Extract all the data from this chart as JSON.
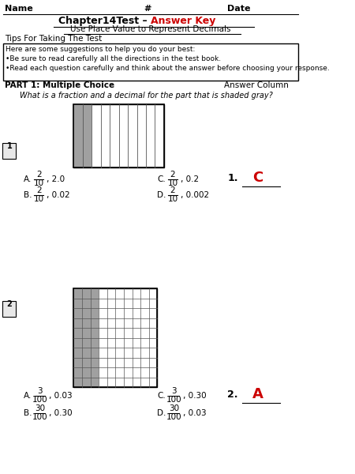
{
  "title_black": "Chapter14Test – ",
  "title_red": "Answer Key",
  "subtitle": "Use Place Value to Represent Decimals",
  "name_label": "Name",
  "hash_label": "#",
  "date_label": "Date",
  "tips_header": "Tips For Taking The Test",
  "tips_lines": [
    "Here are some suggestions to help you do your best:",
    "•Be sure to read carefully all the directions in the test book.",
    "•Read each question carefully and think about the answer before choosing your response."
  ],
  "part1_label": "PART 1: Multiple Choice",
  "answer_col_label": "Answer Column",
  "q1_text": "What is a fraction and a decimal for the part that is shaded gray?",
  "q1_answer": "C",
  "q2_answer": "A",
  "bg_color": "#ffffff",
  "text_color": "#000000",
  "red_color": "#cc0000",
  "gray_shade": "#a0a0a0",
  "grid_color": "#555555"
}
